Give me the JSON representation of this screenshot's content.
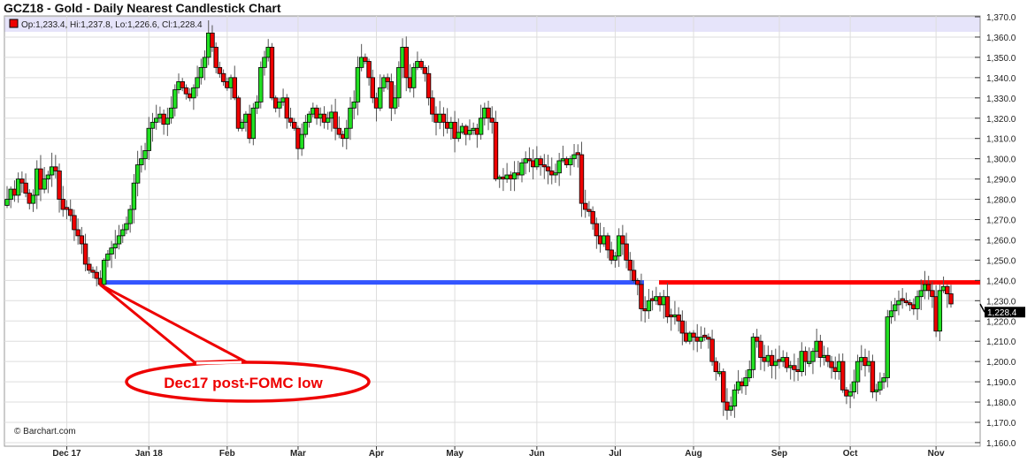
{
  "title": "GCZ18 - Gold - Daily Nearest Candlestick Chart",
  "legend": {
    "marker_color": "#ee0000",
    "text": "Op:1,233.4, Hi:1,237.8, Lo:1,226.6, Cl:1,228.4"
  },
  "copyright": "© Barchart.com",
  "chart_data": {
    "type": "candlestick",
    "ylim": [
      1160,
      1370
    ],
    "y_ticks": [
      "1,160.0",
      "1,170.0",
      "1,180.0",
      "1,190.0",
      "1,200.0",
      "1,210.0",
      "1,220.0",
      "1,230.0",
      "1,240.0",
      "1,250.0",
      "1,260.0",
      "1,270.0",
      "1,280.0",
      "1,290.0",
      "1,300.0",
      "1,310.0",
      "1,320.0",
      "1,330.0",
      "1,340.0",
      "1,350.0",
      "1,360.0",
      "1,370.0"
    ],
    "x_ticks": [
      "Dec 17",
      "Jan 18",
      "Feb",
      "Mar",
      "Apr",
      "May",
      "Jun",
      "Jul",
      "Aug",
      "Sep",
      "Oct",
      "Nov"
    ],
    "grid": true,
    "up_color": "#22e022",
    "down_color": "#ee0000",
    "close": [
      1280,
      1285,
      1282,
      1290,
      1288,
      1283,
      1278,
      1282,
      1295,
      1285,
      1290,
      1292,
      1296,
      1294,
      1280,
      1275,
      1275,
      1272,
      1265,
      1262,
      1258,
      1248,
      1245,
      1244,
      1241,
      1238,
      1250,
      1253,
      1256,
      1258,
      1262,
      1265,
      1268,
      1275,
      1288,
      1297,
      1300,
      1304,
      1315,
      1318,
      1320,
      1322,
      1317,
      1320,
      1325,
      1334,
      1338,
      1335,
      1332,
      1330,
      1335,
      1340,
      1345,
      1350,
      1362,
      1355,
      1345,
      1342,
      1338,
      1335,
      1340,
      1330,
      1315,
      1318,
      1322,
      1310,
      1325,
      1328,
      1345,
      1350,
      1355,
      1330,
      1325,
      1328,
      1330,
      1320,
      1318,
      1315,
      1305,
      1312,
      1318,
      1322,
      1325,
      1320,
      1322,
      1318,
      1320,
      1323,
      1315,
      1312,
      1310,
      1315,
      1325,
      1328,
      1345,
      1350,
      1348,
      1340,
      1330,
      1325,
      1335,
      1340,
      1338,
      1325,
      1330,
      1345,
      1355,
      1340,
      1335,
      1345,
      1348,
      1345,
      1342,
      1330,
      1322,
      1318,
      1322,
      1318,
      1315,
      1318,
      1310,
      1313,
      1316,
      1312,
      1314,
      1315,
      1312,
      1320,
      1325,
      1320,
      1318,
      1290,
      1291,
      1290,
      1292,
      1290,
      1293,
      1292,
      1298,
      1300,
      1299,
      1296,
      1300,
      1297,
      1296,
      1294,
      1292,
      1293,
      1299,
      1300,
      1297,
      1300,
      1302,
      1302,
      1278,
      1275,
      1274,
      1268,
      1262,
      1258,
      1262,
      1255,
      1250,
      1252,
      1262,
      1258,
      1250,
      1245,
      1240,
      1238,
      1226,
      1225,
      1230,
      1230,
      1232,
      1228,
      1232,
      1222,
      1222,
      1223,
      1220,
      1214,
      1210,
      1214,
      1212,
      1210,
      1212,
      1212,
      1211,
      1200,
      1195,
      1195,
      1180,
      1176,
      1178,
      1186,
      1190,
      1188,
      1192,
      1196,
      1212,
      1210,
      1202,
      1200,
      1203,
      1198,
      1200,
      1200,
      1202,
      1197,
      1198,
      1196,
      1195,
      1205,
      1200,
      1200,
      1205,
      1210,
      1202,
      1203,
      1200,
      1197,
      1195,
      1200,
      1186,
      1183,
      1185,
      1190,
      1200,
      1202,
      1198,
      1200,
      1185,
      1186,
      1190,
      1192,
      1222,
      1225,
      1228,
      1230,
      1230,
      1229,
      1228,
      1226,
      1232,
      1235,
      1238,
      1235,
      1232,
      1215,
      1235,
      1237,
      1233.4,
      1228.4
    ],
    "last": {
      "open": 1233.4,
      "high": 1237.8,
      "low": 1226.6,
      "close": 1228.4,
      "label": "1,228.4"
    },
    "annotations": {
      "support_line": {
        "value": 1239,
        "color": "#3355ff"
      },
      "resistance_line": {
        "value": 1239,
        "color": "#ff0000"
      },
      "callout": {
        "text": "Dec17 post-FOMC low",
        "color": "#ee0000"
      }
    }
  }
}
